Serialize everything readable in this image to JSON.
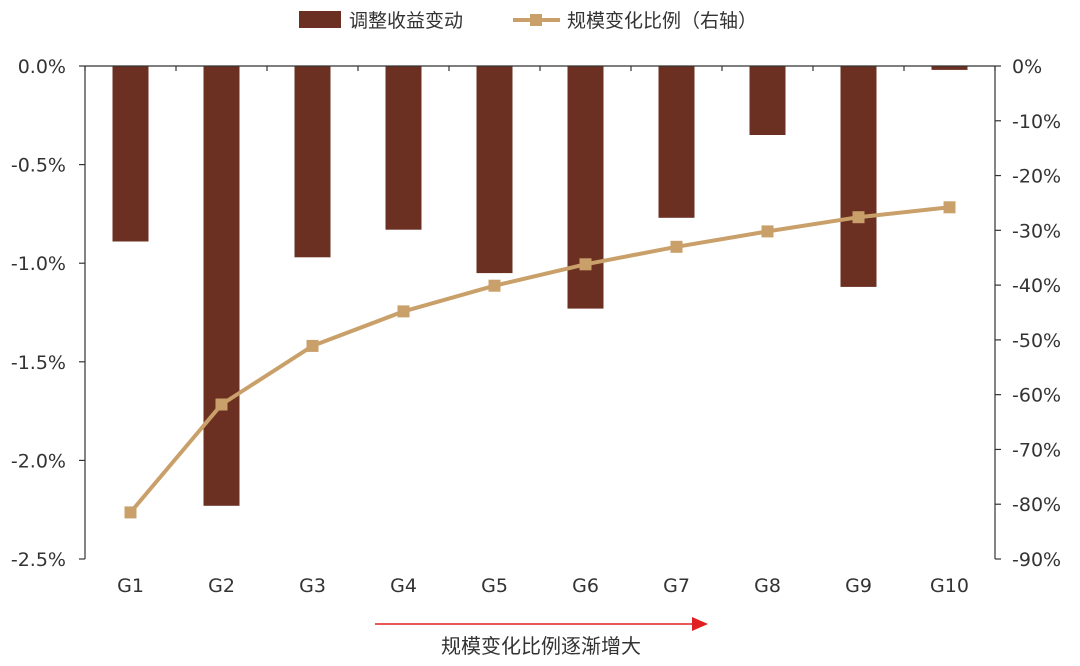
{
  "chart_data": {
    "type": "bar",
    "categories": [
      "G1",
      "G2",
      "G3",
      "G4",
      "G5",
      "G6",
      "G7",
      "G8",
      "G9",
      "G10"
    ],
    "series": [
      {
        "name": "调整收益变动",
        "type": "bar",
        "axis": "left",
        "color": "#6b3022",
        "values": [
          -0.89,
          -2.23,
          -0.97,
          -0.83,
          -1.05,
          -1.23,
          -0.77,
          -0.35,
          -1.12,
          -0.02
        ]
      },
      {
        "name": "规模变化比例（右轴）",
        "type": "line",
        "axis": "right",
        "color": "#c9a06a",
        "marker": "square",
        "values": [
          -81.5,
          -61.8,
          -51.1,
          -44.8,
          -40.1,
          -36.2,
          -33.0,
          -30.2,
          -27.6,
          -25.8
        ]
      }
    ],
    "left_axis": {
      "ylim": [
        -2.5,
        0
      ],
      "ticks": [
        0,
        -0.5,
        -1.0,
        -1.5,
        -2.0,
        -2.5
      ],
      "tick_labels": [
        "0.0%",
        "-0.5%",
        "-1.0%",
        "-1.5%",
        "-2.0%",
        "-2.5%"
      ]
    },
    "right_axis": {
      "ylim": [
        -90,
        0
      ],
      "ticks": [
        0,
        -10,
        -20,
        -30,
        -40,
        -50,
        -60,
        -70,
        -80,
        -90
      ],
      "tick_labels": [
        "0%",
        "-10%",
        "-20%",
        "-30%",
        "-40%",
        "-50%",
        "-60%",
        "-70%",
        "-80%",
        "-90%"
      ]
    },
    "grid": false,
    "legend_position": "top",
    "annotation": {
      "text": "规模变化比例逐渐增大",
      "arrow_color": "#e02020"
    }
  }
}
